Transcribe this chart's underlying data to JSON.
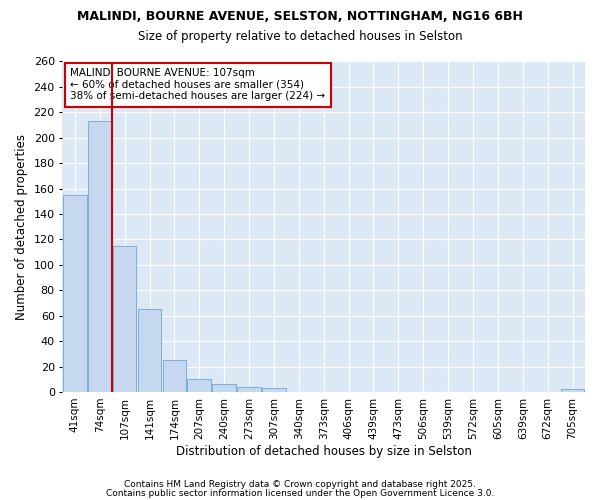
{
  "title1": "MALINDI, BOURNE AVENUE, SELSTON, NOTTINGHAM, NG16 6BH",
  "title2": "Size of property relative to detached houses in Selston",
  "xlabel": "Distribution of detached houses by size in Selston",
  "ylabel": "Number of detached properties",
  "categories": [
    "41sqm",
    "74sqm",
    "107sqm",
    "141sqm",
    "174sqm",
    "207sqm",
    "240sqm",
    "273sqm",
    "307sqm",
    "340sqm",
    "373sqm",
    "406sqm",
    "439sqm",
    "473sqm",
    "506sqm",
    "539sqm",
    "572sqm",
    "605sqm",
    "639sqm",
    "672sqm",
    "705sqm"
  ],
  "values": [
    155,
    213,
    115,
    65,
    25,
    10,
    6,
    4,
    3,
    0,
    0,
    0,
    0,
    0,
    0,
    0,
    0,
    0,
    0,
    0,
    2
  ],
  "bar_color": "#c5d8f0",
  "bar_edge_color": "#7aafd4",
  "vline_color": "#cc0000",
  "vline_x": 2,
  "annotation_lines": [
    "MALINDI BOURNE AVENUE: 107sqm",
    "← 60% of detached houses are smaller (354)",
    "38% of semi-detached houses are larger (224) →"
  ],
  "annotation_box_color": "#cc0000",
  "ylim": [
    0,
    260
  ],
  "yticks": [
    0,
    20,
    40,
    60,
    80,
    100,
    120,
    140,
    160,
    180,
    200,
    220,
    240,
    260
  ],
  "fig_bg": "#ffffff",
  "plot_bg": "#dce8f5",
  "grid_color": "#ffffff",
  "footer1": "Contains HM Land Registry data © Crown copyright and database right 2025.",
  "footer2": "Contains public sector information licensed under the Open Government Licence 3.0."
}
